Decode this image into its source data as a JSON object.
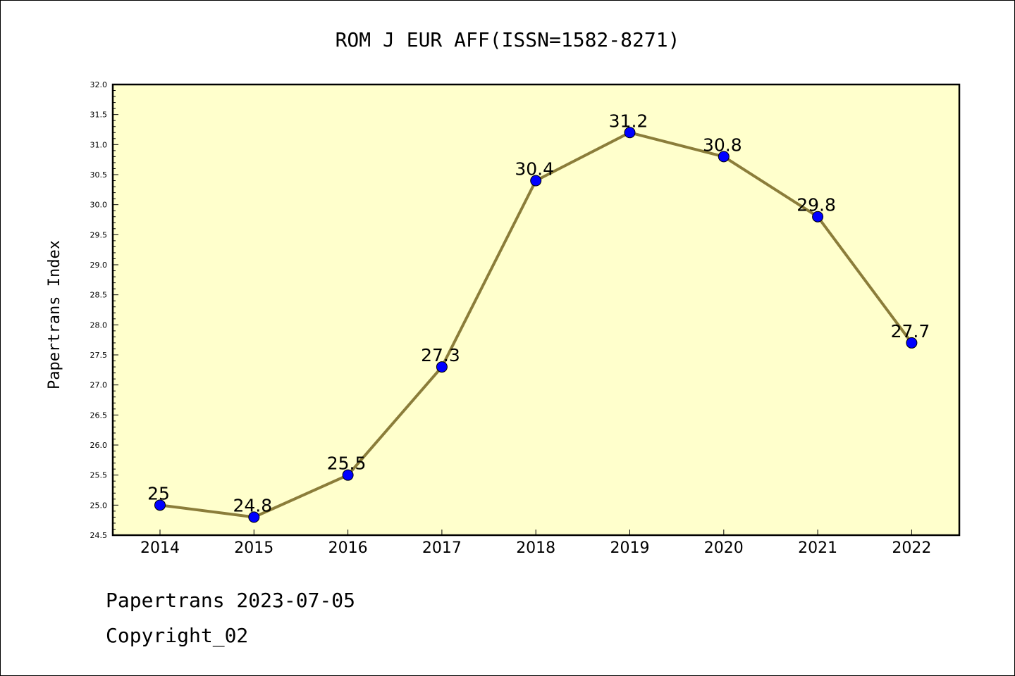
{
  "colors": {
    "plot_background": "#ffffcc",
    "line": "#8b7d3a",
    "marker": "#0000ff",
    "axes": "#000000"
  },
  "footer": {
    "date_line": "Papertrans 2023-07-05",
    "copyright_line": "Copyright_02"
  },
  "chart_data": {
    "type": "line",
    "title": "ROM J EUR AFF(ISSN=1582-8271)",
    "xlabel": "",
    "ylabel": "Papertrans Index",
    "categories": [
      "2014",
      "2015",
      "2016",
      "2017",
      "2018",
      "2019",
      "2020",
      "2021",
      "2022"
    ],
    "series": [
      {
        "values": [
          25.0,
          24.8,
          25.5,
          27.3,
          30.4,
          31.2,
          30.8,
          29.8,
          27.7
        ],
        "labels": [
          "25",
          "24.8",
          "25.5",
          "27.3",
          "30.4",
          "31.2",
          "30.8",
          "29.8",
          "27.7"
        ]
      }
    ],
    "ylim": [
      24.5,
      32.0
    ],
    "yticks": [
      "24.5",
      "25.0",
      "25.5",
      "26.0",
      "26.5",
      "27.0",
      "27.5",
      "28.0",
      "28.5",
      "29.0",
      "29.5",
      "30.0",
      "30.5",
      "31.0",
      "31.5",
      "32.0"
    ],
    "grid": false,
    "legend": "none"
  }
}
